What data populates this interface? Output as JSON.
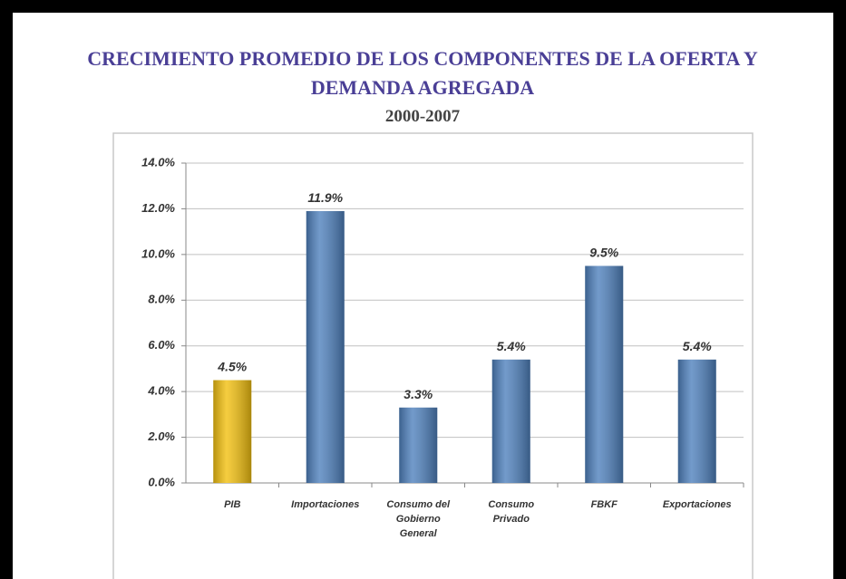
{
  "chart_data": {
    "type": "bar",
    "title": [
      "CRECIMIENTO PROMEDIO DE LOS COMPONENTES DE LA OFERTA Y",
      "DEMANDA AGREGADA"
    ],
    "subtitle": "2000-2007",
    "categories": [
      "PIB",
      "Importaciones",
      "Consumo del Gobierno General",
      "Consumo Privado",
      "FBKF",
      "Exportaciones"
    ],
    "values": [
      4.5,
      11.9,
      3.3,
      5.4,
      9.5,
      5.4
    ],
    "value_labels": [
      "4.5%",
      "11.9%",
      "3.3%",
      "5.4%",
      "9.5%",
      "5.4%"
    ],
    "colors": [
      "#f2c010",
      "#4f81bd",
      "#4f81bd",
      "#4f81bd",
      "#4f81bd",
      "#4f81bd"
    ],
    "ylim": [
      0,
      14
    ],
    "yticks": [
      {
        "value": 0,
        "label": "0.0%"
      },
      {
        "value": 2,
        "label": "2.0%"
      },
      {
        "value": 4,
        "label": "4.0%"
      },
      {
        "value": 6,
        "label": "6.0%"
      },
      {
        "value": 8,
        "label": "8.0%"
      },
      {
        "value": 10,
        "label": "10.0%"
      },
      {
        "value": 12,
        "label": "12.0%"
      },
      {
        "value": 14,
        "label": "14.0%"
      }
    ],
    "grid": true
  }
}
